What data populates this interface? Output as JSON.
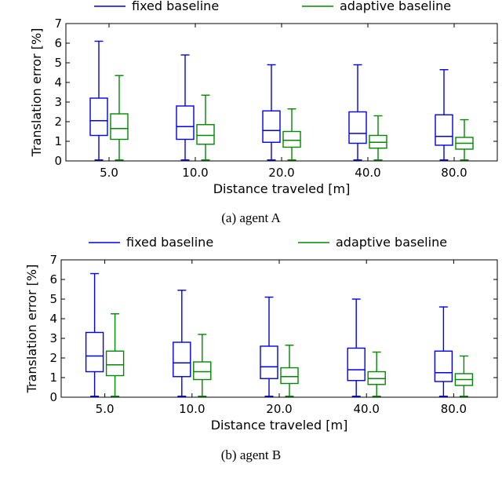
{
  "chart_data": [
    {
      "type": "box",
      "caption": "(a) agent A",
      "xlabel": "Distance traveled [m]",
      "ylabel": "Translation error [%]",
      "ylim": [
        0,
        7
      ],
      "yticks": [
        "0",
        "1",
        "2",
        "3",
        "4",
        "5",
        "6",
        "7"
      ],
      "categories": [
        "5.0",
        "10.0",
        "20.0",
        "40.0",
        "80.0"
      ],
      "series": [
        {
          "name": "fixed baseline",
          "color": "#0000ee",
          "boxes": [
            {
              "min": 0.05,
              "q1": 1.3,
              "median": 2.05,
              "q3": 3.2,
              "max": 6.1
            },
            {
              "min": 0.05,
              "q1": 1.1,
              "median": 1.75,
              "q3": 2.8,
              "max": 5.4
            },
            {
              "min": 0.05,
              "q1": 0.95,
              "median": 1.55,
              "q3": 2.55,
              "max": 4.9
            },
            {
              "min": 0.05,
              "q1": 0.9,
              "median": 1.4,
              "q3": 2.5,
              "max": 4.9
            },
            {
              "min": 0.05,
              "q1": 0.8,
              "median": 1.25,
              "q3": 2.35,
              "max": 4.65
            }
          ]
        },
        {
          "name": "adaptive baseline",
          "color": "#008800",
          "boxes": [
            {
              "min": 0.05,
              "q1": 1.1,
              "median": 1.65,
              "q3": 2.4,
              "max": 4.35
            },
            {
              "min": 0.05,
              "q1": 0.85,
              "median": 1.3,
              "q3": 1.85,
              "max": 3.35
            },
            {
              "min": 0.05,
              "q1": 0.7,
              "median": 1.05,
              "q3": 1.5,
              "max": 2.65
            },
            {
              "min": 0.05,
              "q1": 0.65,
              "median": 0.95,
              "q3": 1.3,
              "max": 2.3
            },
            {
              "min": 0.05,
              "q1": 0.6,
              "median": 0.9,
              "q3": 1.2,
              "max": 2.1
            }
          ]
        }
      ]
    },
    {
      "type": "box",
      "caption": "(b) agent B",
      "xlabel": "Distance traveled [m]",
      "ylabel": "Translation error [%]",
      "ylim": [
        0,
        7
      ],
      "yticks": [
        "0",
        "1",
        "2",
        "3",
        "4",
        "5",
        "6",
        "7"
      ],
      "categories": [
        "5.0",
        "10.0",
        "20.0",
        "40.0",
        "80.0"
      ],
      "series": [
        {
          "name": "fixed baseline",
          "color": "#0000ee",
          "boxes": [
            {
              "min": 0.05,
              "q1": 1.3,
              "median": 2.1,
              "q3": 3.3,
              "max": 6.3
            },
            {
              "min": 0.05,
              "q1": 1.05,
              "median": 1.75,
              "q3": 2.8,
              "max": 5.45
            },
            {
              "min": 0.05,
              "q1": 0.95,
              "median": 1.55,
              "q3": 2.6,
              "max": 5.1
            },
            {
              "min": 0.05,
              "q1": 0.85,
              "median": 1.4,
              "q3": 2.5,
              "max": 5.0
            },
            {
              "min": 0.05,
              "q1": 0.8,
              "median": 1.25,
              "q3": 2.35,
              "max": 4.6
            }
          ]
        },
        {
          "name": "adaptive baseline",
          "color": "#008800",
          "boxes": [
            {
              "min": 0.05,
              "q1": 1.1,
              "median": 1.65,
              "q3": 2.35,
              "max": 4.25
            },
            {
              "min": 0.05,
              "q1": 0.9,
              "median": 1.3,
              "q3": 1.8,
              "max": 3.2
            },
            {
              "min": 0.05,
              "q1": 0.7,
              "median": 1.05,
              "q3": 1.5,
              "max": 2.65
            },
            {
              "min": 0.05,
              "q1": 0.65,
              "median": 0.95,
              "q3": 1.3,
              "max": 2.3
            },
            {
              "min": 0.05,
              "q1": 0.6,
              "median": 0.9,
              "q3": 1.2,
              "max": 2.1
            }
          ]
        }
      ]
    }
  ]
}
